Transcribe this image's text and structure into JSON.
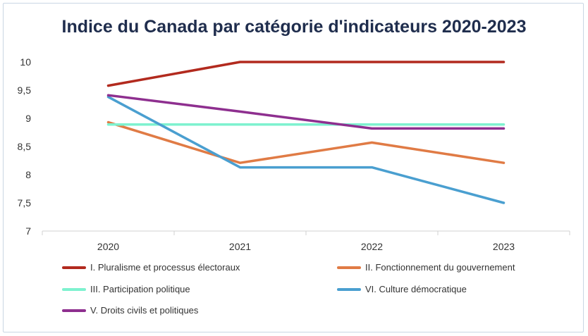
{
  "chart_data": {
    "type": "line",
    "title": "Indice du Canada par catégorie d'indicateurs 2020-2023",
    "x": [
      "2020",
      "2021",
      "2022",
      "2023"
    ],
    "ylim": [
      7,
      10
    ],
    "yticks": [
      "7",
      "7,5",
      "8",
      "8,5",
      "9",
      "9,5",
      "10"
    ],
    "grid": false,
    "legend_position": "bottom",
    "series": [
      {
        "name": "I. Pluralisme et processus électoraux",
        "color": "#b22a1e",
        "values": [
          9.58,
          10.0,
          10.0,
          10.0
        ]
      },
      {
        "name": "II. Fonctionnement du gouvernement",
        "color": "#e07b45",
        "values": [
          8.93,
          8.21,
          8.57,
          8.21
        ]
      },
      {
        "name": "III. Participation politique",
        "color": "#7ef2cf",
        "values": [
          8.89,
          8.89,
          8.89,
          8.89
        ]
      },
      {
        "name": "VI. Culture démocratique",
        "color": "#4a9fd0",
        "values": [
          9.38,
          8.13,
          8.13,
          7.5
        ]
      },
      {
        "name": "V. Droits civils et politiques",
        "color": "#8e2f8f",
        "values": [
          9.41,
          9.12,
          8.82,
          8.82
        ]
      }
    ]
  }
}
